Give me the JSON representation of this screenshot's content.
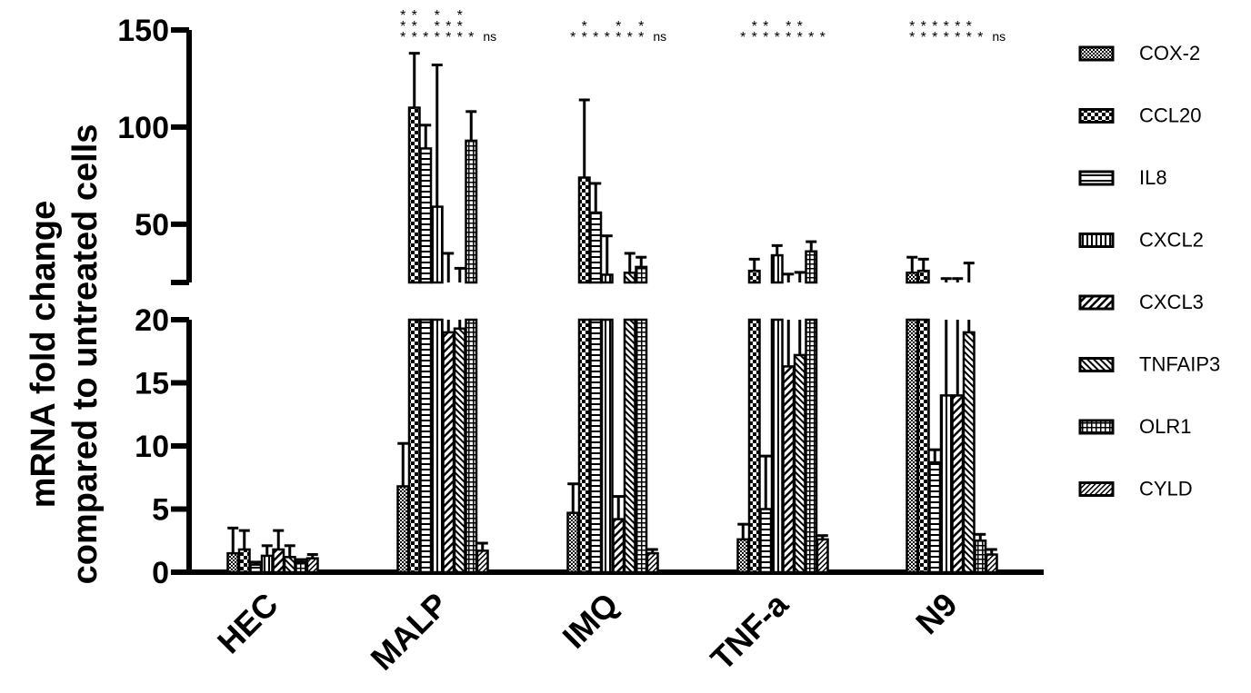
{
  "chart_data": {
    "type": "bar",
    "ylabel": [
      "mRNA fold change",
      "compared to untreated  cells"
    ],
    "xlabel": "",
    "categories": [
      "HEC",
      "MALP",
      "IMQ",
      "TNF-a",
      "N9"
    ],
    "axis_break": {
      "lower_range": [
        0,
        20
      ],
      "upper_range": [
        20,
        150
      ],
      "lower_ticks": [
        "0",
        "5",
        "10",
        "15",
        "20"
      ],
      "upper_ticks": [
        "50",
        "100",
        "150"
      ]
    },
    "series": [
      {
        "name": "COX-2",
        "color": "#000000",
        "pattern": "dots",
        "values": [
          1.5,
          6.8,
          4.7,
          2.6,
          25
        ],
        "errors": [
          2.0,
          3.4,
          2.3,
          1.2,
          8
        ]
      },
      {
        "name": "CCL20",
        "color": "#000000",
        "pattern": "checker",
        "values": [
          1.8,
          110,
          74,
          26,
          26
        ],
        "errors": [
          1.5,
          28,
          40,
          6,
          6
        ]
      },
      {
        "name": "IL8",
        "color": "#000000",
        "pattern": "hlines",
        "values": [
          0.6,
          89,
          56,
          5.0,
          8.7
        ],
        "errors": [
          0.2,
          12,
          15,
          4.2,
          1.0
        ]
      },
      {
        "name": "CXCL2",
        "color": "#000000",
        "pattern": "vlines",
        "values": [
          1.3,
          59,
          24,
          34,
          14
        ],
        "errors": [
          0.8,
          73,
          20,
          5,
          8
        ]
      },
      {
        "name": "CXCL3",
        "color": "#000000",
        "pattern": "diag",
        "values": [
          1.8,
          19,
          4.2,
          16.3,
          14
        ],
        "errors": [
          1.5,
          16,
          1.8,
          8,
          8
        ]
      },
      {
        "name": "TNFAIP3",
        "color": "#000000",
        "pattern": "diag2",
        "values": [
          1.2,
          19.3,
          25,
          17.2,
          19
        ],
        "errors": [
          0.9,
          8,
          10,
          8,
          11
        ]
      },
      {
        "name": "OLR1",
        "color": "#000000",
        "pattern": "grid",
        "values": [
          0.8,
          93,
          28,
          36,
          2.5
        ],
        "errors": [
          0.2,
          15,
          5,
          5,
          0.5
        ]
      },
      {
        "name": "CYLD",
        "color": "#000000",
        "pattern": "diag3",
        "values": [
          1.1,
          1.7,
          1.5,
          2.6,
          1.4
        ],
        "errors": [
          0.3,
          0.6,
          0.3,
          0.3,
          0.4
        ]
      }
    ],
    "significance": [
      {
        "category": "MALP",
        "marks": [
          "***",
          "***",
          "*",
          "***",
          "**",
          "***",
          "*",
          "ns"
        ]
      },
      {
        "category": "IMQ",
        "marks": [
          "*",
          "**",
          "*",
          "*",
          "**",
          "*",
          "**",
          "ns"
        ]
      },
      {
        "category": "TNF-a",
        "marks": [
          "*",
          "**",
          "**",
          "*",
          "**",
          "**",
          "*",
          "*"
        ]
      },
      {
        "category": "N9",
        "marks": [
          "**",
          "**",
          "**",
          "**",
          "**",
          "**",
          "*",
          "ns"
        ]
      }
    ],
    "legend": {
      "placement": "right"
    }
  }
}
